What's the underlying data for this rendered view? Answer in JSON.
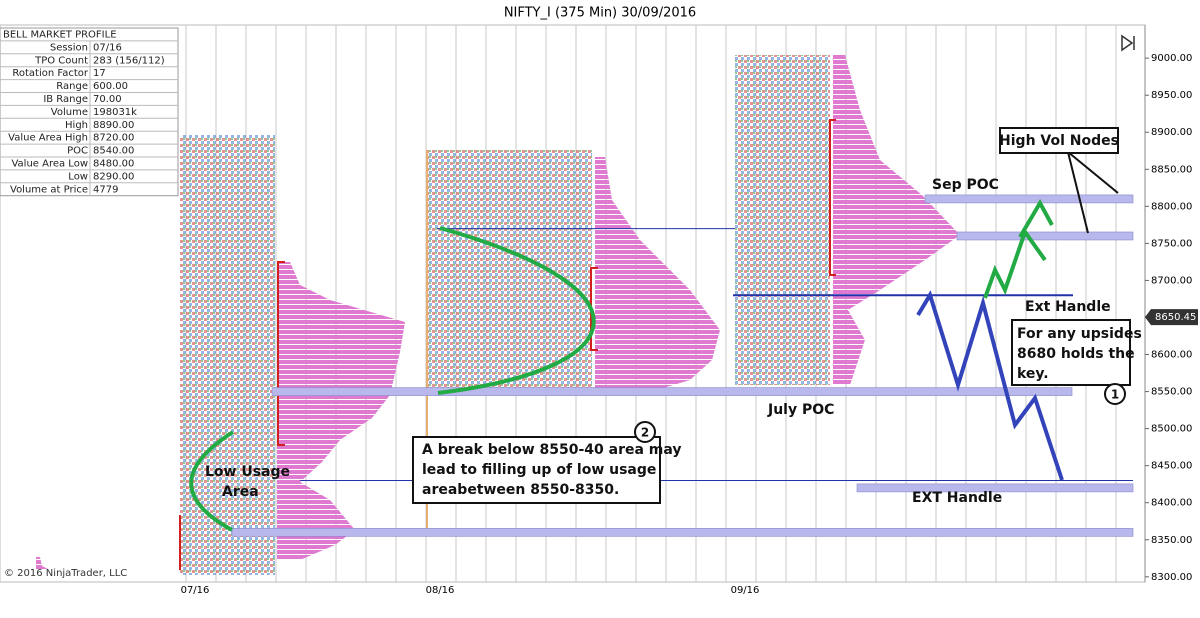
{
  "chart_data": {
    "type": "market-profile",
    "title": "NIFTY_I (375 Min)  30/09/2016",
    "ylim": [
      8293,
      9038
    ],
    "yticks": [
      {
        "value": 8300,
        "label": "8300.00"
      },
      {
        "value": 8350,
        "label": "8350.00"
      },
      {
        "value": 8400,
        "label": "8400.00"
      },
      {
        "value": 8450,
        "label": "8450.00"
      },
      {
        "value": 8500,
        "label": "8500.00"
      },
      {
        "value": 8550,
        "label": "8550.00"
      },
      {
        "value": 8600,
        "label": "8600.00"
      },
      {
        "value": 8650,
        "label": "8650.00"
      },
      {
        "value": 8700,
        "label": "8700.00"
      },
      {
        "value": 8750,
        "label": "8750.00"
      },
      {
        "value": 8800,
        "label": "8800.00"
      },
      {
        "value": 8850,
        "label": "8850.00"
      },
      {
        "value": 8900,
        "label": "8900.00"
      },
      {
        "value": 8950,
        "label": "8950.00"
      },
      {
        "value": 9000,
        "label": "9000.00"
      }
    ],
    "last_price": 8650.45,
    "categories": [
      "07/16",
      "08/16",
      "09/16"
    ],
    "levels": [
      8810,
      8760,
      8550,
      8420,
      8360
    ],
    "lines": [
      8680,
      8770,
      8430
    ],
    "info_panel": {
      "title": "BELL MARKET PROFILE",
      "rows": [
        [
          "Session",
          "07/16"
        ],
        [
          "TPO Count",
          "283 (156/112)"
        ],
        [
          "Rotation Factor",
          "17"
        ],
        [
          "Range",
          "600.00"
        ],
        [
          "IB Range",
          "70.00"
        ],
        [
          "Volume",
          "198031k"
        ],
        [
          "High",
          "8890.00"
        ],
        [
          "Value Area High",
          "8720.00"
        ],
        [
          "POC",
          "8540.00"
        ],
        [
          "Value Area Low",
          "8480.00"
        ],
        [
          "Low",
          "8290.00"
        ],
        [
          "Volume at Price",
          "4779"
        ]
      ]
    },
    "annotations": {
      "sep_poc": "Sep POC",
      "high_vol_nodes": "High Vol Nodes",
      "ext_handle": "Ext Handle",
      "upsides": [
        "For any upsides",
        "8680 holds the",
        "key."
      ],
      "july_poc": "July POC",
      "break_below": [
        "A break below 8550-40 area may",
        "lead to filling up of low usage",
        "areabetween 8550-8350."
      ],
      "low_usage": [
        "Low Usage",
        "Area"
      ],
      "ext_handle_low": "EXT Handle",
      "marker_1": "1",
      "marker_2": "2"
    },
    "copyright": "© 2016 NinjaTrader, LLC"
  }
}
